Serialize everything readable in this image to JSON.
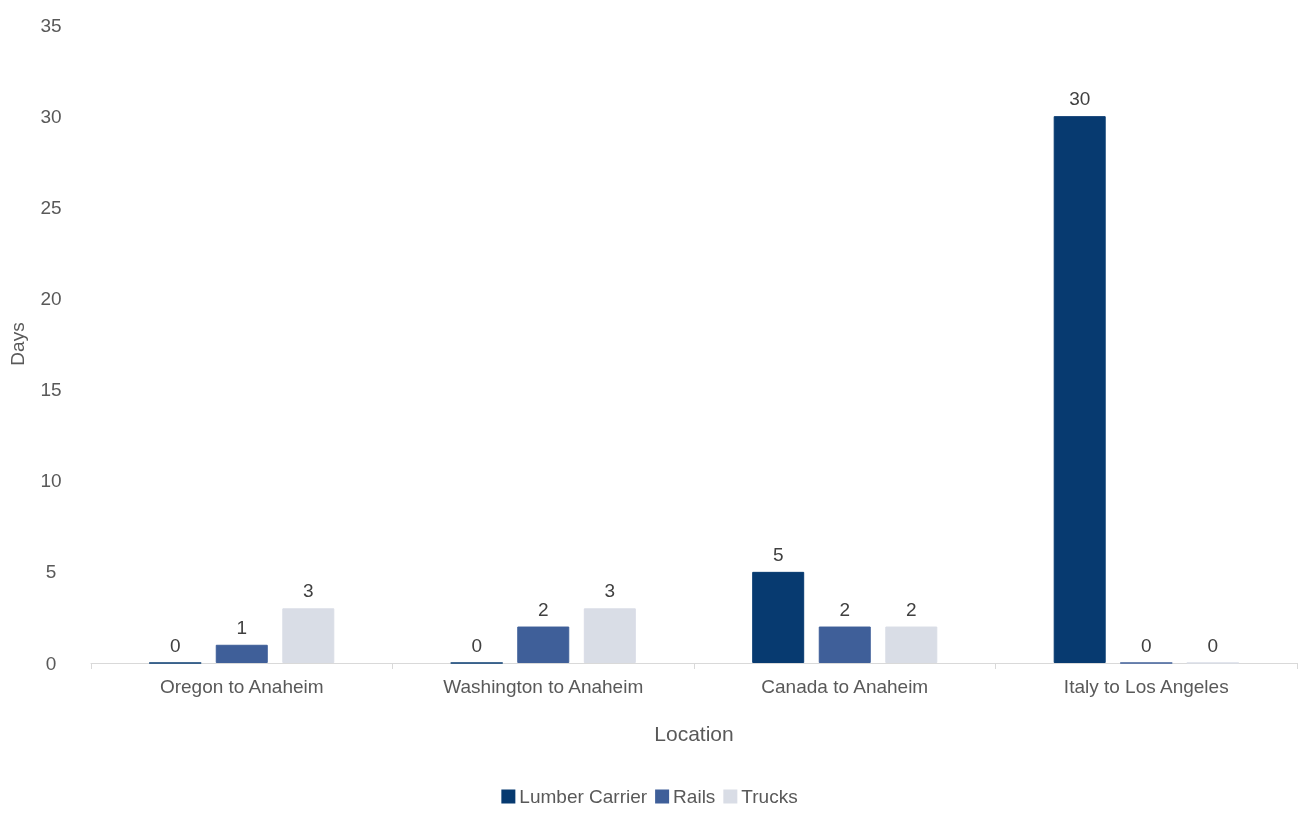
{
  "chart_data": {
    "type": "bar",
    "xlabel": "Location",
    "ylabel": "Days",
    "categories": [
      "Oregon to Anaheim",
      "Washington to Anaheim",
      "Canada to Anaheim",
      "Italy to Los Angeles"
    ],
    "series": [
      {
        "name": "Lumber Carrier",
        "color": "#073a70",
        "values": [
          0,
          0,
          5,
          30
        ]
      },
      {
        "name": "Rails",
        "color": "#3f5f99",
        "values": [
          1,
          2,
          2,
          0
        ]
      },
      {
        "name": "Trucks",
        "color": "#d9dde6",
        "values": [
          3,
          3,
          2,
          0
        ]
      }
    ],
    "ylim": [
      0,
      35
    ],
    "yticks": [
      0,
      5,
      10,
      15,
      20,
      25,
      30,
      35
    ],
    "grid": false,
    "legend": "bottom",
    "data_labels": true
  }
}
